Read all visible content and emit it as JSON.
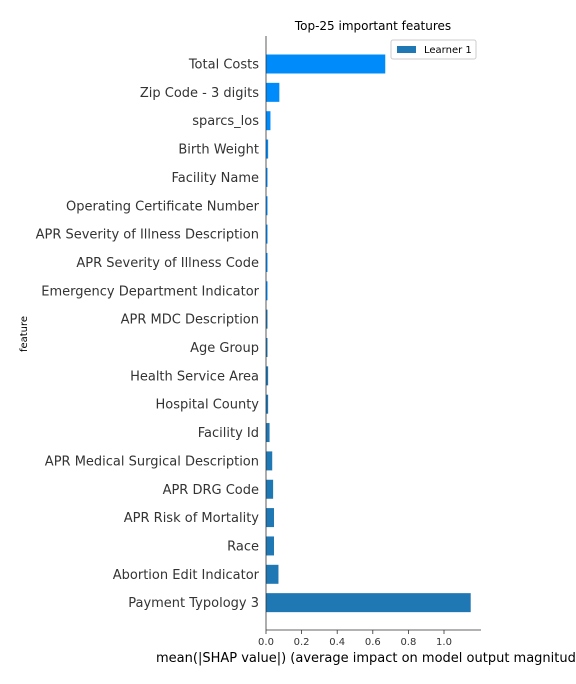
{
  "chart_data": {
    "type": "bar",
    "orientation": "horizontal",
    "title": "Top-25 important features",
    "xlabel": "mean(|SHAP value|) (average impact on model output magnitude)",
    "ylabel": "feature",
    "xlim": [
      0,
      1.2
    ],
    "xticks": [
      "0.0",
      "0.2",
      "0.4",
      "0.6",
      "0.8",
      "1.0"
    ],
    "xtick_values": [
      0,
      0.2,
      0.4,
      0.6,
      0.8,
      1.0
    ],
    "legend_position": "top-right",
    "grid": false,
    "categories": [
      "Total Costs",
      "Zip Code - 3 digits",
      "sparcs_los",
      "Birth Weight",
      "Facility Name",
      "Operating Certificate Number",
      "APR Severity of Illness Description",
      "APR Severity of Illness Code",
      "Emergency Department Indicator",
      "APR MDC Description",
      "Age Group",
      "Health Service Area",
      "Hospital County",
      "Facility Id",
      "APR Medical Surgical Description",
      "APR DRG Code",
      "APR Risk of Mortality",
      "Race",
      "Abortion Edit Indicator",
      "Payment Typology 3"
    ],
    "series": [
      {
        "name": "Learner 1",
        "legend_color": "#1f77b4",
        "values": [
          0.67,
          0.075,
          0.025,
          0.012,
          0.005,
          0.004,
          0.004,
          0.004,
          0.004,
          0.004,
          0.005,
          0.012,
          0.012,
          0.02,
          0.035,
          0.04,
          0.045,
          0.045,
          0.07,
          1.15
        ],
        "colors": [
          "#008bfb",
          "#008bfb",
          "#008bfb",
          "#008bfb",
          "#008bfb",
          "#008bfb",
          "#008bfb",
          "#008bfb",
          "#008bfb",
          "#1f77b4",
          "#1f77b4",
          "#1f77b4",
          "#1f77b4",
          "#1f77b4",
          "#1f77b4",
          "#1f77b4",
          "#1f77b4",
          "#1f77b4",
          "#1f77b4",
          "#1f77b4"
        ]
      }
    ]
  }
}
